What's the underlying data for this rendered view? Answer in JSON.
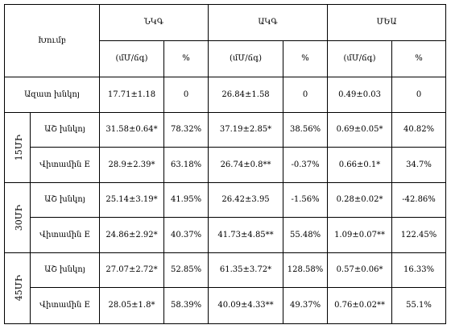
{
  "table": {
    "header": {
      "group_label": "Խումբ",
      "columns": [
        "ՆԿԳ",
        "ԱԿԳ",
        "ՄԵԱ"
      ],
      "units": [
        "(մՄ/ճգ)",
        "%",
        "(մՄ/ճգ)",
        "%",
        "(մՄ/ճգ)",
        "%"
      ]
    },
    "control": {
      "label": "Ազատ խնկոյ",
      "values": [
        "17.71±1.18",
        "0",
        "26.84±1.58",
        "0",
        "0.49±0.03",
        "0"
      ]
    },
    "groups": [
      {
        "time": "15ՄԻ",
        "rows": [
          {
            "label": "ԱՇ խնկոյ",
            "values": [
              "31.58±0.64*",
              "78.32%",
              "37.19±2.85*",
              "38.56%",
              "0.69±0.05*",
              "40.82%"
            ]
          },
          {
            "label": "Վիտամին E",
            "values": [
              "28.9±2.39*",
              "63.18%",
              "26.74±0.8**",
              "-0.37%",
              "0.66±0.1*",
              "34.7%"
            ]
          }
        ]
      },
      {
        "time": "30ՄԻ",
        "rows": [
          {
            "label": "ԱՇ խնկոյ",
            "values": [
              "25.14±3.19*",
              "41.95%",
              "26.42±3.95",
              "-1.56%",
              "0.28±0.02*",
              "-42.86%"
            ]
          },
          {
            "label": "Վիտամին E",
            "values": [
              "24.86±2.92*",
              "40.37%",
              "41.73±4.85**",
              "55.48%",
              "1.09±0.07**",
              "122.45%"
            ]
          }
        ]
      },
      {
        "time": "45ՄԻ",
        "rows": [
          {
            "label": "ԱՇ խնկոյ",
            "values": [
              "27.07±2.72*",
              "52.85%",
              "61.35±3.72*",
              "128.58%",
              "0.57±0.06*",
              "16.33%"
            ]
          },
          {
            "label": "Վիտամին E",
            "values": [
              "28.05±1.8*",
              "58.39%",
              "40.09±4.33**",
              "49.37%",
              "0.76±0.02**",
              "55.1%"
            ]
          }
        ]
      }
    ]
  }
}
